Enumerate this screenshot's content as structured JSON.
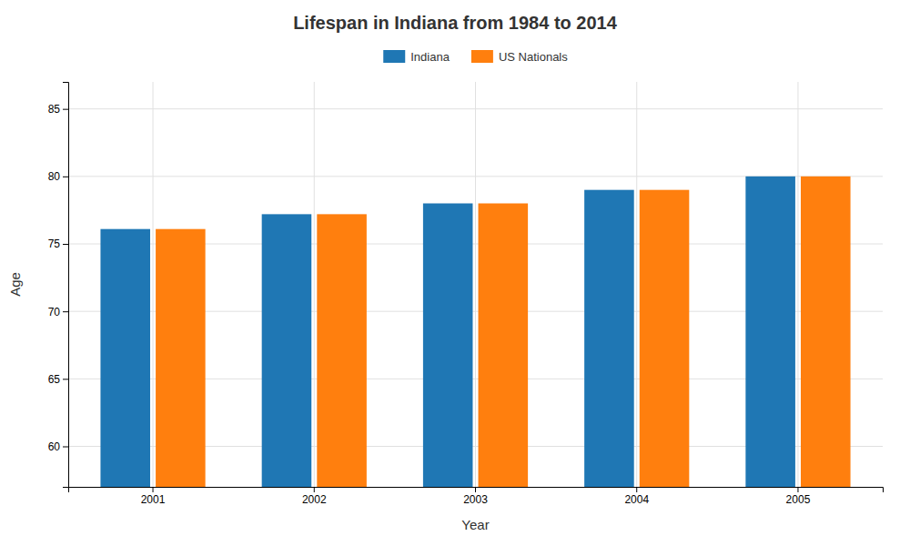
{
  "chart_data": {
    "type": "bar",
    "title": "Lifespan in Indiana from 1984 to 2014",
    "xlabel": "Year",
    "ylabel": "Age",
    "categories": [
      "2001",
      "2002",
      "2003",
      "2004",
      "2005"
    ],
    "series": [
      {
        "name": "Indiana",
        "values": [
          76.1,
          77.2,
          78.0,
          79.0,
          80.0
        ]
      },
      {
        "name": "US Nationals",
        "values": [
          76.1,
          77.2,
          78.0,
          79.0,
          80.0
        ]
      }
    ],
    "ylim": [
      57,
      87
    ],
    "yticks": [
      60,
      65,
      70,
      75,
      80,
      85
    ],
    "grid": true,
    "legend": "top"
  }
}
